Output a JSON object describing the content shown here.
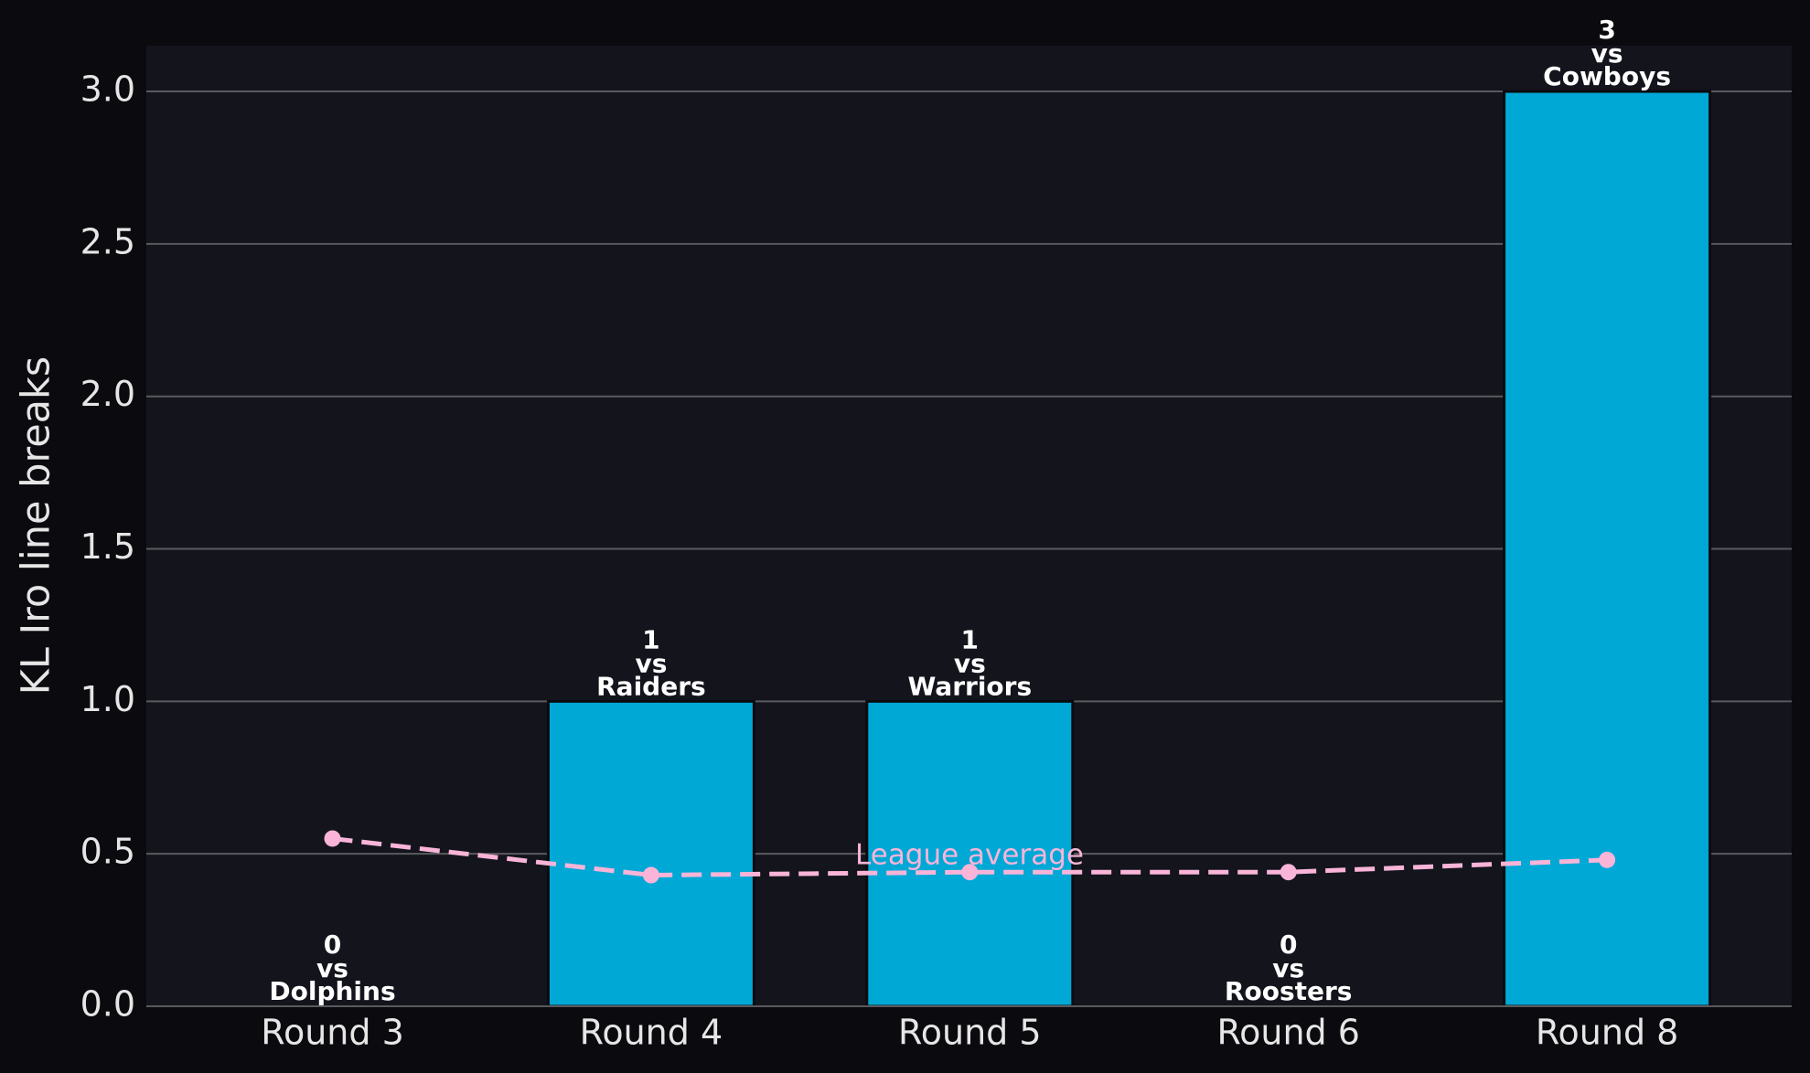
{
  "chart_data": {
    "type": "bar",
    "ylabel": "KL Iro line breaks",
    "categories": [
      "Round 3",
      "Round 4",
      "Round 5",
      "Round 6",
      "Round 8"
    ],
    "values": [
      0,
      1,
      1,
      0,
      3
    ],
    "color": "#00a8d6",
    "connector": "vs",
    "opponents": [
      "Dolphins",
      "Raiders",
      "Warriors",
      "Roosters",
      "Cowboys"
    ],
    "ylim": [
      0,
      3.15
    ],
    "yticks": [
      {
        "value": 0,
        "label": "0.0"
      },
      {
        "value": 0.5,
        "label": "0.5"
      },
      {
        "value": 1,
        "label": "1.0"
      },
      {
        "value": 1.5,
        "label": "1.5"
      },
      {
        "value": 2,
        "label": "2.0"
      },
      {
        "value": 2.5,
        "label": "2.5"
      },
      {
        "value": 3,
        "label": "3.0"
      }
    ],
    "grid": true,
    "line": {
      "name": "League average",
      "color": "#f9b4d8",
      "values": [
        0.55,
        0.43,
        0.44,
        0.44,
        0.48
      ]
    }
  }
}
